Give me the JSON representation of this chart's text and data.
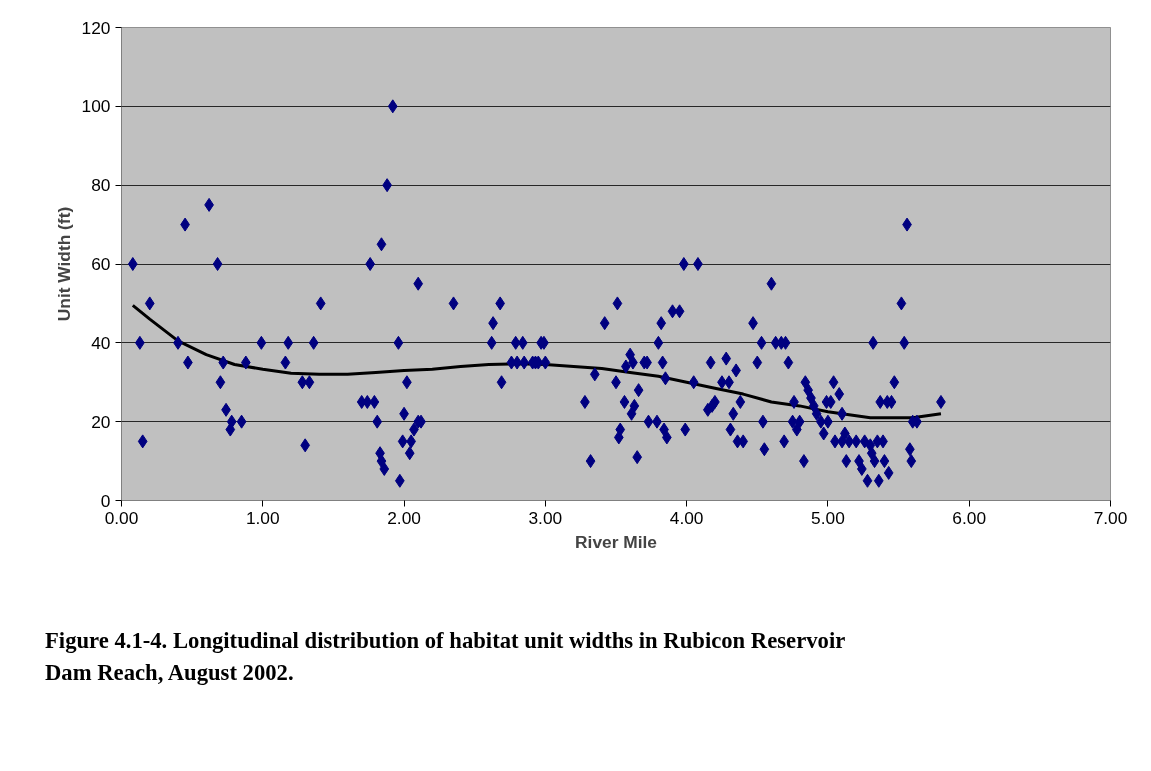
{
  "chart_data": {
    "type": "scatter",
    "xlabel": "River Mile",
    "ylabel": "Unit Width (ft)",
    "annotations": [
      "Figure 4.1-4. Longitudinal distribution of habitat unit widths in Rubicon Reservoir Dam Reach, August 2002."
    ],
    "xlim": [
      0,
      7
    ],
    "ylim": [
      0,
      120
    ],
    "xticks": [
      {
        "value": 0,
        "label": "0.00"
      },
      {
        "value": 1,
        "label": "1.00"
      },
      {
        "value": 2,
        "label": "2.00"
      },
      {
        "value": 3,
        "label": "3.00"
      },
      {
        "value": 4,
        "label": "4.00"
      },
      {
        "value": 5,
        "label": "5.00"
      },
      {
        "value": 6,
        "label": "6.00"
      },
      {
        "value": 7,
        "label": "7.00"
      }
    ],
    "yticks": [
      0,
      20,
      40,
      60,
      80,
      100,
      120
    ],
    "grid": "y",
    "marker": "diamond",
    "series": [
      {
        "color": "#000080",
        "x": [
          0.08,
          0.13,
          0.15,
          0.2,
          0.4,
          0.45,
          0.47,
          0.62,
          0.68,
          0.7,
          0.72,
          0.74,
          0.77,
          0.78,
          0.85,
          0.88,
          0.99,
          1.16,
          1.18,
          1.28,
          1.3,
          1.33,
          1.36,
          1.41,
          1.7,
          1.74,
          1.76,
          1.79,
          1.81,
          1.83,
          1.84,
          1.84,
          1.86,
          1.88,
          1.92,
          1.96,
          1.97,
          1.99,
          2.0,
          2.02,
          2.04,
          2.05,
          2.07,
          2.1,
          2.1,
          2.12,
          2.35,
          2.62,
          2.63,
          2.68,
          2.69,
          2.76,
          2.79,
          2.8,
          2.84,
          2.85,
          2.91,
          2.93,
          2.95,
          2.97,
          2.99,
          3.0,
          3.28,
          3.32,
          3.35,
          3.42,
          3.5,
          3.51,
          3.52,
          3.53,
          3.56,
          3.57,
          3.6,
          3.61,
          3.62,
          3.63,
          3.65,
          3.66,
          3.7,
          3.72,
          3.73,
          3.79,
          3.8,
          3.82,
          3.83,
          3.85,
          3.84,
          3.86,
          3.9,
          3.95,
          3.98,
          3.99,
          4.05,
          4.08,
          4.15,
          4.17,
          4.18,
          4.2,
          4.25,
          4.28,
          4.3,
          4.31,
          4.33,
          4.35,
          4.36,
          4.38,
          4.4,
          4.47,
          4.5,
          4.53,
          4.54,
          4.55,
          4.6,
          4.63,
          4.67,
          4.69,
          4.7,
          4.72,
          4.75,
          4.76,
          4.78,
          4.8,
          4.83,
          4.84,
          4.86,
          4.88,
          4.9,
          4.92,
          4.95,
          4.97,
          4.99,
          5.0,
          5.02,
          5.04,
          5.05,
          5.08,
          5.1,
          5.1,
          5.12,
          5.13,
          5.15,
          5.2,
          5.22,
          5.24,
          5.26,
          5.28,
          5.3,
          5.31,
          5.32,
          5.33,
          5.35,
          5.36,
          5.37,
          5.39,
          5.4,
          5.42,
          5.43,
          5.45,
          5.47,
          5.52,
          5.54,
          5.56,
          5.58,
          5.59,
          5.6,
          5.63,
          5.8
        ],
        "values": [
          60,
          40,
          15,
          50,
          40,
          70,
          35,
          75,
          60,
          30,
          35,
          23,
          18,
          20,
          20,
          35,
          40,
          35,
          40,
          30,
          14,
          30,
          40,
          50,
          25,
          25,
          60,
          25,
          20,
          12,
          65,
          10,
          8,
          80,
          100,
          40,
          5,
          15,
          22,
          30,
          12,
          15,
          18,
          20,
          55,
          20,
          50,
          40,
          45,
          50,
          30,
          35,
          40,
          35,
          40,
          35,
          35,
          35,
          35,
          40,
          40,
          35,
          25,
          10,
          32,
          45,
          30,
          50,
          16,
          18,
          25,
          34,
          37,
          22,
          35,
          24,
          11,
          28,
          35,
          35,
          20,
          20,
          40,
          45,
          35,
          31,
          18,
          16,
          48,
          48,
          60,
          18,
          30,
          60,
          23,
          35,
          24,
          25,
          30,
          36,
          30,
          18,
          22,
          33,
          15,
          25,
          15,
          45,
          35,
          40,
          20,
          13,
          55,
          40,
          40,
          15,
          40,
          35,
          20,
          25,
          18,
          20,
          10,
          30,
          28,
          26,
          24,
          22,
          20,
          17,
          25,
          20,
          25,
          30,
          15,
          27,
          15,
          22,
          17,
          10,
          15,
          15,
          10,
          8,
          15,
          5,
          14,
          12,
          40,
          10,
          15,
          5,
          25,
          15,
          10,
          25,
          7,
          25,
          30,
          50,
          40,
          70,
          13,
          10,
          20,
          20,
          25
        ]
      },
      {
        "type": "line",
        "color": "#000000",
        "marker": "none",
        "x": [
          0.08,
          0.2,
          0.4,
          0.6,
          0.8,
          1.0,
          1.2,
          1.4,
          1.6,
          1.8,
          2.0,
          2.2,
          2.4,
          2.6,
          2.8,
          3.0,
          3.2,
          3.4,
          3.6,
          3.8,
          4.0,
          4.2,
          4.4,
          4.6,
          4.8,
          5.0,
          5.2,
          5.3,
          5.5,
          5.6,
          5.8
        ],
        "values": [
          49.5,
          46,
          40.5,
          37,
          34.5,
          33.3,
          32.3,
          32,
          32,
          32.5,
          33,
          33.3,
          34,
          34.5,
          34.7,
          34.5,
          34,
          33.5,
          32.5,
          31.5,
          30,
          28.5,
          27,
          25,
          24,
          22.5,
          21.5,
          21,
          21,
          21,
          22
        ]
      }
    ]
  }
}
